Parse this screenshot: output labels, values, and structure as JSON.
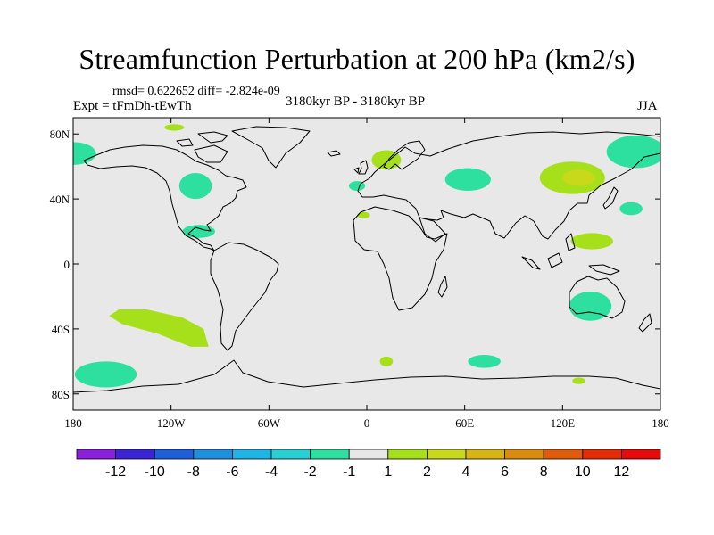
{
  "title": "Streamfunction Perturbation at 200 hPa (km2/s)",
  "stats": "rmsd= 0.622652 diff= -2.824e-09",
  "subtitle_left": "Expt = tFmDh-tEwTh",
  "subtitle_center": "3180kyr BP - 3180kyr BP",
  "subtitle_right": "JJA",
  "colors": {
    "background": "#e8e8e8",
    "coast": "#000000"
  },
  "chart_data": {
    "type": "heatmap",
    "projection": "cylindrical-equidistant",
    "x_range": [
      -180,
      180
    ],
    "y_range": [
      -90,
      90
    ],
    "x_ticks": [
      {
        "value": -180,
        "label": "180"
      },
      {
        "value": -120,
        "label": "120W"
      },
      {
        "value": -60,
        "label": "60W"
      },
      {
        "value": 0,
        "label": "0"
      },
      {
        "value": 60,
        "label": "60E"
      },
      {
        "value": 120,
        "label": "120E"
      },
      {
        "value": 180,
        "label": "180"
      }
    ],
    "y_ticks": [
      {
        "value": 80,
        "label": "80N"
      },
      {
        "value": 40,
        "label": "40N"
      },
      {
        "value": 0,
        "label": "0"
      },
      {
        "value": -40,
        "label": "40S"
      },
      {
        "value": -80,
        "label": "80S"
      }
    ],
    "colorbar": {
      "colors": [
        "#8c1fdc",
        "#3b24d6",
        "#1e5fdc",
        "#1f8fe0",
        "#1fb4e6",
        "#26d0d4",
        "#2ee0a0",
        "#e8e8e8",
        "#a6e01a",
        "#c8d81a",
        "#d8b414",
        "#dc8c0c",
        "#e05c08",
        "#e42c06",
        "#e60a0a"
      ],
      "labels": [
        "-12",
        "-10",
        "-8",
        "-6",
        "-4",
        "-2",
        "-1",
        "1",
        "2",
        "4",
        "6",
        "8",
        "10",
        "12"
      ]
    },
    "anomalies": [
      {
        "lon": -180,
        "lat": 68,
        "rx": 14,
        "ry": 7,
        "value": -1.5
      },
      {
        "lon": 165,
        "lat": 69,
        "rx": 18,
        "ry": 10,
        "value": -1.5
      },
      {
        "lon": -118,
        "lat": 84,
        "rx": 6,
        "ry": 2,
        "value": 1.5
      },
      {
        "lon": -105,
        "lat": 48,
        "rx": 10,
        "ry": 8,
        "value": -1.5
      },
      {
        "lon": -103,
        "lat": 20,
        "rx": 10,
        "ry": 4,
        "value": -1.5
      },
      {
        "lon": -6,
        "lat": 48,
        "rx": 5,
        "ry": 3,
        "value": -1.5
      },
      {
        "lon": -2,
        "lat": 30,
        "rx": 4,
        "ry": 2,
        "value": 1.5
      },
      {
        "lon": 12,
        "lat": 64,
        "rx": 9,
        "ry": 6,
        "value": 1.5
      },
      {
        "lon": 62,
        "lat": 52,
        "rx": 14,
        "ry": 7,
        "value": -1.5
      },
      {
        "lon": 126,
        "lat": 53,
        "rx": 20,
        "ry": 10,
        "value": 1.5
      },
      {
        "lon": 130,
        "lat": 53,
        "rx": 10,
        "ry": 5,
        "value": 3
      },
      {
        "lon": 162,
        "lat": 34,
        "rx": 7,
        "ry": 4,
        "value": -1.5
      },
      {
        "lon": 138,
        "lat": 14,
        "rx": 13,
        "ry": 5,
        "value": 1.5
      },
      {
        "lon": 137,
        "lat": -26,
        "rx": 13,
        "ry": 9,
        "value": -1.5
      },
      {
        "lon": -160,
        "lat": -68,
        "rx": 19,
        "ry": 8,
        "value": -1.5
      },
      {
        "lon": 72,
        "lat": -60,
        "rx": 10,
        "ry": 4,
        "value": -1.5
      },
      {
        "lon": 12,
        "lat": -60,
        "rx": 4,
        "ry": 3,
        "value": 1.5
      },
      {
        "lon": 130,
        "lat": -72,
        "rx": 4,
        "ry": 2,
        "value": 1.5
      }
    ],
    "anomaly_bands": [
      {
        "points": [
          [
            -152,
            -28
          ],
          [
            -135,
            -28
          ],
          [
            -113,
            -33
          ],
          [
            -100,
            -40
          ],
          [
            -97,
            -51
          ],
          [
            -108,
            -51
          ],
          [
            -128,
            -43
          ],
          [
            -150,
            -37
          ],
          [
            -158,
            -32
          ]
        ],
        "value": 1.5
      }
    ]
  }
}
